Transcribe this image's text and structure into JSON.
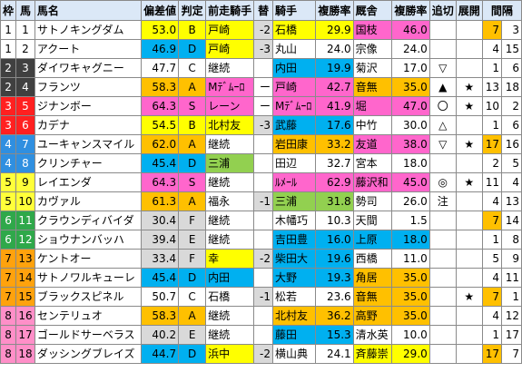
{
  "headers": [
    "枠",
    "馬",
    "馬名",
    "偏差値",
    "判定",
    "前走騎手",
    "替",
    "騎手",
    "複勝率",
    "厩舎",
    "複勝率",
    "追切",
    "展開",
    "間隔"
  ],
  "colors": {
    "yellow": "#ffff00",
    "pink": "#ff66cc",
    "blue": "#00b0f0",
    "orange": "#ffc000",
    "gray": "#d9d9d9",
    "green": "#92d050",
    "header": "#dbe8f7"
  },
  "rows": [
    {
      "waku": "1",
      "num": "1",
      "name": "サトノキングダム",
      "score": "53.0",
      "grade": "B",
      "prev": "戸崎",
      "change": "-2",
      "jockey": "石橋",
      "jr": "29.9",
      "trainer": "国枝",
      "tr": "46.0",
      "oikiri": "",
      "tenkai": "",
      "k1": "7",
      "k2": "3",
      "c_score": "yellow",
      "c_prev": "yellow",
      "c_jockey": "yellow",
      "c_trainer": "pink",
      "c_k1": "orange"
    },
    {
      "waku": "1",
      "num": "2",
      "name": "アクート",
      "score": "46.9",
      "grade": "D",
      "prev": "戸崎",
      "change": "-3",
      "jockey": "丸山",
      "jr": "24.0",
      "trainer": "宗像",
      "tr": "24.0",
      "oikiri": "",
      "tenkai": "",
      "k1": "4",
      "k2": "15",
      "c_score": "blue",
      "c_prev": "yellow",
      "c_jockey": "",
      "c_trainer": "",
      "c_k1": ""
    },
    {
      "waku": "2",
      "num": "3",
      "name": "ダイワキャグニー",
      "score": "47.7",
      "grade": "C",
      "prev": "継続",
      "change": "",
      "jockey": "内田",
      "jr": "19.9",
      "trainer": "菊沢",
      "tr": "17.0",
      "oikiri": "▽",
      "tenkai": "",
      "k1": "1",
      "k2": "6",
      "c_score": "",
      "c_prev": "",
      "c_jockey": "blue",
      "c_trainer": "",
      "c_k1": ""
    },
    {
      "waku": "2",
      "num": "4",
      "name": "フランツ",
      "score": "58.3",
      "grade": "A",
      "prev": "Mﾃﾞﾑｰﾛ",
      "change": "ー",
      "jockey": "戸崎",
      "jr": "42.7",
      "trainer": "音無",
      "tr": "35.0",
      "oikiri": "▲",
      "tenkai": "★",
      "k1": "13",
      "k2": "18",
      "c_score": "orange",
      "c_prev": "pink",
      "c_jockey": "pink",
      "c_trainer": "orange",
      "c_k1": ""
    },
    {
      "waku": "3",
      "num": "5",
      "name": "ジナンボー",
      "score": "64.3",
      "grade": "S",
      "prev": "レーン",
      "change": "ー",
      "jockey": "Mﾃﾞﾑｰﾛ",
      "jr": "41.9",
      "trainer": "堀",
      "tr": "47.0",
      "oikiri": "〇",
      "tenkai": "★",
      "k1": "10",
      "k2": "2",
      "c_score": "pink",
      "c_prev": "pink",
      "c_jockey": "pink",
      "c_trainer": "pink",
      "c_k1": ""
    },
    {
      "waku": "3",
      "num": "6",
      "name": "カデナ",
      "score": "54.5",
      "grade": "B",
      "prev": "北村友",
      "change": "-3",
      "jockey": "武藤",
      "jr": "17.6",
      "trainer": "中竹",
      "tr": "30.0",
      "oikiri": "△",
      "tenkai": "",
      "k1": "1",
      "k2": "6",
      "c_score": "yellow",
      "c_prev": "yellow",
      "c_jockey": "blue",
      "c_trainer": "",
      "c_k1": ""
    },
    {
      "waku": "4",
      "num": "7",
      "name": "ユーキャンスマイル",
      "score": "62.0",
      "grade": "A",
      "prev": "継続",
      "change": "",
      "jockey": "岩田康",
      "jr": "33.2",
      "trainer": "友道",
      "tr": "38.0",
      "oikiri": "▽",
      "tenkai": "★",
      "k1": "17",
      "k2": "16",
      "c_score": "orange",
      "c_prev": "",
      "c_jockey": "orange",
      "c_trainer": "pink",
      "c_k1": "orange"
    },
    {
      "waku": "4",
      "num": "8",
      "name": "クリンチャー",
      "score": "45.4",
      "grade": "D",
      "prev": "三浦",
      "change": "",
      "jockey": "田辺",
      "jr": "32.7",
      "trainer": "宮本",
      "tr": "18.0",
      "oikiri": "",
      "tenkai": "",
      "k1": "2",
      "k2": "5",
      "c_score": "blue",
      "c_prev": "green",
      "c_jockey": "",
      "c_trainer": "",
      "c_k1": ""
    },
    {
      "waku": "5",
      "num": "9",
      "name": "レイエンダ",
      "score": "64.3",
      "grade": "S",
      "prev": "継続",
      "change": "",
      "jockey": "ﾙﾒｰﾙ",
      "jr": "62.9",
      "trainer": "藤沢和",
      "tr": "45.0",
      "oikiri": "◎",
      "tenkai": "★",
      "k1": "11",
      "k2": "4",
      "c_score": "pink",
      "c_prev": "",
      "c_jockey": "pink",
      "c_trainer": "pink",
      "c_k1": ""
    },
    {
      "waku": "5",
      "num": "10",
      "name": "カヴァル",
      "score": "61.3",
      "grade": "A",
      "prev": "福永",
      "change": "-1",
      "jockey": "三浦",
      "jr": "31.8",
      "trainer": "勢司",
      "tr": "26.0",
      "oikiri": "注",
      "tenkai": "",
      "k1": "4",
      "k2": "13",
      "c_score": "orange",
      "c_prev": "",
      "c_jockey": "green",
      "c_trainer": "",
      "c_k1": ""
    },
    {
      "waku": "6",
      "num": "11",
      "name": "クラウンディバイダ",
      "score": "30.4",
      "grade": "F",
      "prev": "継続",
      "change": "",
      "jockey": "木幡巧",
      "jr": "10.3",
      "trainer": "天間",
      "tr": "1.5",
      "oikiri": "",
      "tenkai": "",
      "k1": "7",
      "k2": "14",
      "c_score": "gray",
      "c_prev": "",
      "c_jockey": "",
      "c_trainer": "",
      "c_k1": "orange"
    },
    {
      "waku": "6",
      "num": "12",
      "name": "ショウナンバッハ",
      "score": "39.4",
      "grade": "E",
      "prev": "継続",
      "change": "",
      "jockey": "吉田豊",
      "jr": "16.0",
      "trainer": "上原",
      "tr": "18.0",
      "oikiri": "",
      "tenkai": "",
      "k1": "1",
      "k2": "8",
      "c_score": "gray",
      "c_prev": "",
      "c_jockey": "blue",
      "c_trainer": "blue",
      "c_k1": ""
    },
    {
      "waku": "7",
      "num": "13",
      "name": "ケントオー",
      "score": "33.4",
      "grade": "F",
      "prev": "幸",
      "change": "-2",
      "jockey": "柴田大",
      "jr": "19.6",
      "trainer": "西橋",
      "tr": "11.0",
      "oikiri": "",
      "tenkai": "",
      "k1": "5",
      "k2": "9",
      "c_score": "gray",
      "c_prev": "yellow",
      "c_jockey": "blue",
      "c_trainer": "",
      "c_k1": ""
    },
    {
      "waku": "7",
      "num": "14",
      "name": "サトノワルキューレ",
      "score": "45.4",
      "grade": "D",
      "prev": "内田",
      "change": "",
      "jockey": "大野",
      "jr": "19.3",
      "trainer": "角居",
      "tr": "35.0",
      "oikiri": "",
      "tenkai": "",
      "k1": "4",
      "k2": "11",
      "c_score": "blue",
      "c_prev": "blue",
      "c_jockey": "blue",
      "c_trainer": "orange",
      "c_k1": ""
    },
    {
      "waku": "7",
      "num": "15",
      "name": "ブラックスピネル",
      "score": "50.7",
      "grade": "C",
      "prev": "石橋",
      "change": "-1",
      "jockey": "松若",
      "jr": "23.6",
      "trainer": "音無",
      "tr": "35.0",
      "oikiri": "",
      "tenkai": "★",
      "k1": "7",
      "k2": "1",
      "c_score": "",
      "c_prev": "",
      "c_jockey": "",
      "c_trainer": "orange",
      "c_k1": "orange"
    },
    {
      "waku": "8",
      "num": "16",
      "name": "センテリュオ",
      "score": "58.3",
      "grade": "A",
      "prev": "継続",
      "change": "",
      "jockey": "北村友",
      "jr": "36.2",
      "trainer": "高野",
      "tr": "35.0",
      "oikiri": "",
      "tenkai": "",
      "k1": "4",
      "k2": "12",
      "c_score": "orange",
      "c_prev": "",
      "c_jockey": "orange",
      "c_trainer": "orange",
      "c_k1": ""
    },
    {
      "waku": "8",
      "num": "17",
      "name": "ゴールドサーベラス",
      "score": "40.2",
      "grade": "E",
      "prev": "継続",
      "change": "",
      "jockey": "藤田",
      "jr": "15.3",
      "trainer": "清水英",
      "tr": "10.0",
      "oikiri": "",
      "tenkai": "",
      "k1": "1",
      "k2": "17",
      "c_score": "gray",
      "c_prev": "",
      "c_jockey": "blue",
      "c_trainer": "",
      "c_k1": ""
    },
    {
      "waku": "8",
      "num": "18",
      "name": "ダッシングブレイズ",
      "score": "44.7",
      "grade": "D",
      "prev": "浜中",
      "change": "-2",
      "jockey": "横山典",
      "jr": "24.1",
      "trainer": "斉藤崇",
      "tr": "29.0",
      "oikiri": "",
      "tenkai": "",
      "k1": "17",
      "k2": "7",
      "c_score": "blue",
      "c_prev": "yellow",
      "c_jockey": "",
      "c_trainer": "yellow",
      "c_k1": "orange"
    }
  ]
}
